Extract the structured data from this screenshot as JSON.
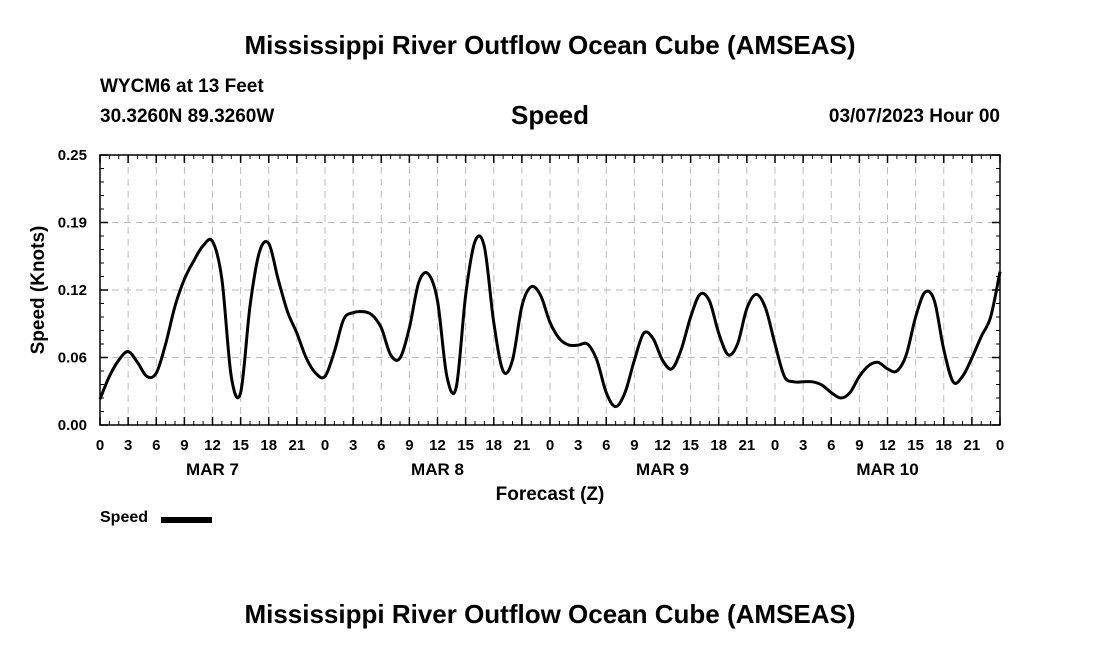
{
  "header": {
    "title": "Mississippi River Outflow Ocean Cube (AMSEAS)",
    "station": "WYCM6 at 13 Feet",
    "coordinates": "30.3260N  89.3260W",
    "variable": "Speed",
    "datetime": "03/07/2023 Hour 00"
  },
  "footer": {
    "title": "Mississippi River Outflow Ocean Cube (AMSEAS)"
  },
  "legend": {
    "label": "Speed"
  },
  "chart_data": {
    "type": "line",
    "xlabel": "Forecast (Z)",
    "ylabel": "Speed (Knots)",
    "ylim": [
      0,
      0.25
    ],
    "yticks": [
      "0.00",
      "0.06",
      "0.12",
      "0.19",
      "0.25"
    ],
    "ytick_values": [
      0,
      0.0625,
      0.125,
      0.1875,
      0.25
    ],
    "xlim": [
      0,
      96
    ],
    "xticks": [
      0,
      3,
      6,
      9,
      12,
      15,
      18,
      21,
      24,
      27,
      30,
      33,
      36,
      39,
      42,
      45,
      48,
      51,
      54,
      57,
      60,
      63,
      66,
      69,
      72,
      75,
      78,
      81,
      84,
      87,
      90,
      93,
      96
    ],
    "xtick_labels": [
      "0",
      "3",
      "6",
      "9",
      "12",
      "15",
      "18",
      "21",
      "0",
      "3",
      "6",
      "9",
      "12",
      "15",
      "18",
      "21",
      "0",
      "3",
      "6",
      "9",
      "12",
      "15",
      "18",
      "21",
      "0",
      "3",
      "6",
      "9",
      "12",
      "15",
      "18",
      "21",
      "0"
    ],
    "day_labels": [
      {
        "label": "MAR 7",
        "hour": 12
      },
      {
        "label": "MAR 8",
        "hour": 36
      },
      {
        "label": "MAR 9",
        "hour": 60
      },
      {
        "label": "MAR 10",
        "hour": 84
      }
    ],
    "grid": true,
    "line_color": "#000000",
    "series": [
      {
        "name": "Speed",
        "x": [
          0,
          1,
          2,
          3,
          4,
          5,
          6,
          7,
          8,
          9,
          10,
          11,
          12,
          13,
          14,
          15,
          16,
          17,
          18,
          19,
          20,
          21,
          22,
          23,
          24,
          25,
          26,
          27,
          28,
          29,
          30,
          31,
          32,
          33,
          34,
          35,
          36,
          37,
          38,
          39,
          40,
          41,
          42,
          43,
          44,
          45,
          46,
          47,
          48,
          49,
          50,
          51,
          52,
          53,
          54,
          55,
          56,
          57,
          58,
          59,
          60,
          61,
          62,
          63,
          64,
          65,
          66,
          67,
          68,
          69,
          70,
          71,
          72,
          73,
          74,
          75,
          76,
          77,
          78,
          79,
          80,
          81,
          82,
          83,
          84,
          85,
          86,
          87,
          88,
          89,
          90,
          91,
          92,
          93,
          94,
          95,
          96
        ],
        "values": [
          0.024,
          0.045,
          0.06,
          0.068,
          0.058,
          0.045,
          0.048,
          0.075,
          0.11,
          0.135,
          0.152,
          0.166,
          0.17,
          0.135,
          0.045,
          0.03,
          0.11,
          0.16,
          0.168,
          0.135,
          0.105,
          0.085,
          0.062,
          0.048,
          0.045,
          0.068,
          0.098,
          0.104,
          0.105,
          0.102,
          0.09,
          0.065,
          0.062,
          0.09,
          0.132,
          0.14,
          0.115,
          0.045,
          0.035,
          0.12,
          0.17,
          0.165,
          0.095,
          0.05,
          0.06,
          0.11,
          0.128,
          0.12,
          0.095,
          0.08,
          0.074,
          0.074,
          0.075,
          0.06,
          0.03,
          0.017,
          0.03,
          0.06,
          0.085,
          0.08,
          0.06,
          0.052,
          0.07,
          0.1,
          0.121,
          0.115,
          0.085,
          0.065,
          0.075,
          0.108,
          0.121,
          0.108,
          0.075,
          0.045,
          0.04,
          0.04,
          0.04,
          0.037,
          0.03,
          0.025,
          0.03,
          0.045,
          0.055,
          0.058,
          0.052,
          0.05,
          0.065,
          0.1,
          0.123,
          0.115,
          0.07,
          0.04,
          0.045,
          0.062,
          0.082,
          0.1,
          0.142
        ]
      }
    ]
  }
}
